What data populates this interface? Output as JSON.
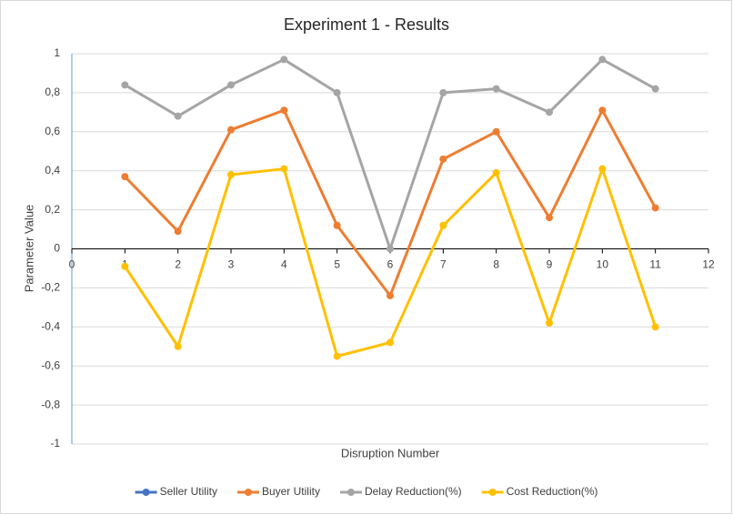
{
  "chart_data": {
    "type": "line",
    "title": "Experiment 1 - Results",
    "x_label": "Disruption Number",
    "y_label": "Parameter Value",
    "x": [
      1,
      2,
      3,
      4,
      5,
      6,
      7,
      8,
      9,
      10,
      11
    ],
    "series": [
      {
        "name": "Seller Utility",
        "color": "#4472c4",
        "values": [
          null,
          null,
          null,
          null,
          null,
          null,
          null,
          null,
          null,
          null,
          null
        ]
      },
      {
        "name": "Buyer Utility",
        "color": "#ed7d31",
        "values": [
          0.37,
          0.09,
          0.61,
          0.71,
          0.12,
          -0.24,
          0.46,
          0.6,
          0.16,
          0.71,
          0.21
        ]
      },
      {
        "name": "Delay Reduction(%)",
        "color": "#a5a5a5",
        "values": [
          0.84,
          0.68,
          0.84,
          0.97,
          0.8,
          0,
          0.8,
          0.82,
          0.7,
          0.97,
          0.82
        ]
      },
      {
        "name": "Cost Reduction(%)",
        "color": "#ffc000",
        "values": [
          -0.09,
          -0.5,
          0.38,
          0.41,
          -0.55,
          -0.48,
          0.12,
          0.39,
          -0.38,
          0.41,
          -0.4
        ]
      }
    ],
    "xlim": [
      0,
      12
    ],
    "xticks": [
      0,
      1,
      2,
      3,
      4,
      5,
      6,
      7,
      8,
      9,
      10,
      11,
      12
    ],
    "ylim": [
      -1,
      1
    ],
    "yticks": [
      -1,
      {
        "value": -0.8,
        "label": "-0,8"
      },
      {
        "value": -0.6,
        "label": "-0,6"
      },
      {
        "value": -0.4,
        "label": "-0,4"
      },
      {
        "value": -0.2,
        "label": "-0,2"
      },
      0,
      {
        "value": 0.2,
        "label": "0,2"
      },
      {
        "value": 0.4,
        "label": "0,4"
      },
      {
        "value": 0.6,
        "label": "0,6"
      },
      {
        "value": 0.8,
        "label": "0,8"
      },
      1
    ],
    "grid": true,
    "legend": "bottom"
  }
}
